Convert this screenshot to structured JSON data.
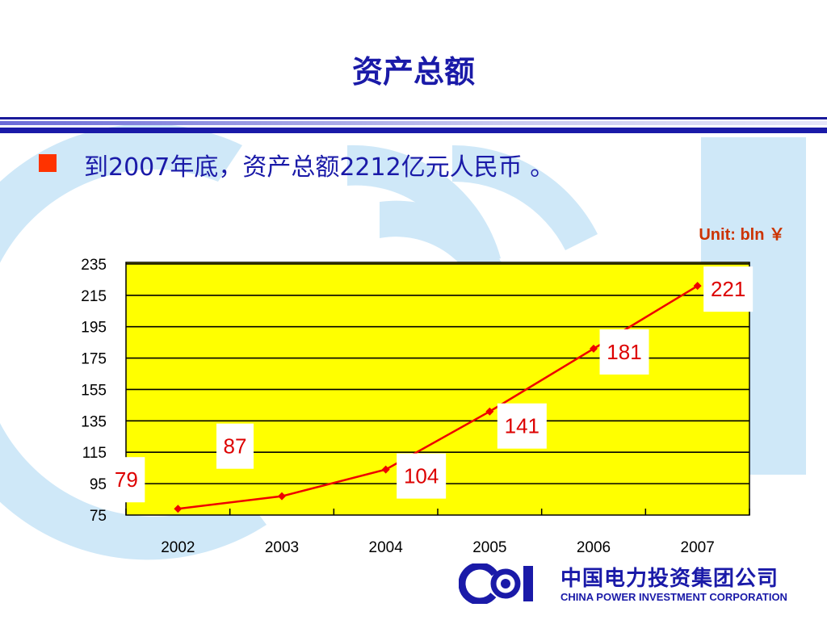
{
  "slide": {
    "title": "资产总额",
    "headline": "到2007年底，资产总额2212亿元人民币 。",
    "unit_label": "Unit: bln ￥"
  },
  "logo": {
    "name_cn": "中国电力投资集团公司",
    "name_en": "CHINA POWER INVESTMENT CORPORATION"
  },
  "colors": {
    "accent_blue": "#1a1aa8",
    "bullet_red": "#ff3300",
    "plot_background": "#ffff00",
    "series_line": "#ee0000",
    "data_label": "#dd0000",
    "background_logo": "#cfe8f8"
  },
  "chart_data": {
    "type": "line",
    "title": "",
    "xlabel": "",
    "ylabel": "",
    "categories": [
      "2002",
      "2003",
      "2004",
      "2005",
      "2006",
      "2007"
    ],
    "series": [
      {
        "values": [
          79,
          87,
          104,
          141,
          181,
          221
        ]
      }
    ],
    "data_labels": [
      "79",
      "87",
      "104",
      "141",
      "181",
      "221"
    ],
    "yticks": [
      75,
      95,
      115,
      135,
      155,
      175,
      195,
      215,
      235
    ],
    "ylim": [
      75,
      236
    ],
    "grid": "horizontal",
    "legend": "none"
  }
}
